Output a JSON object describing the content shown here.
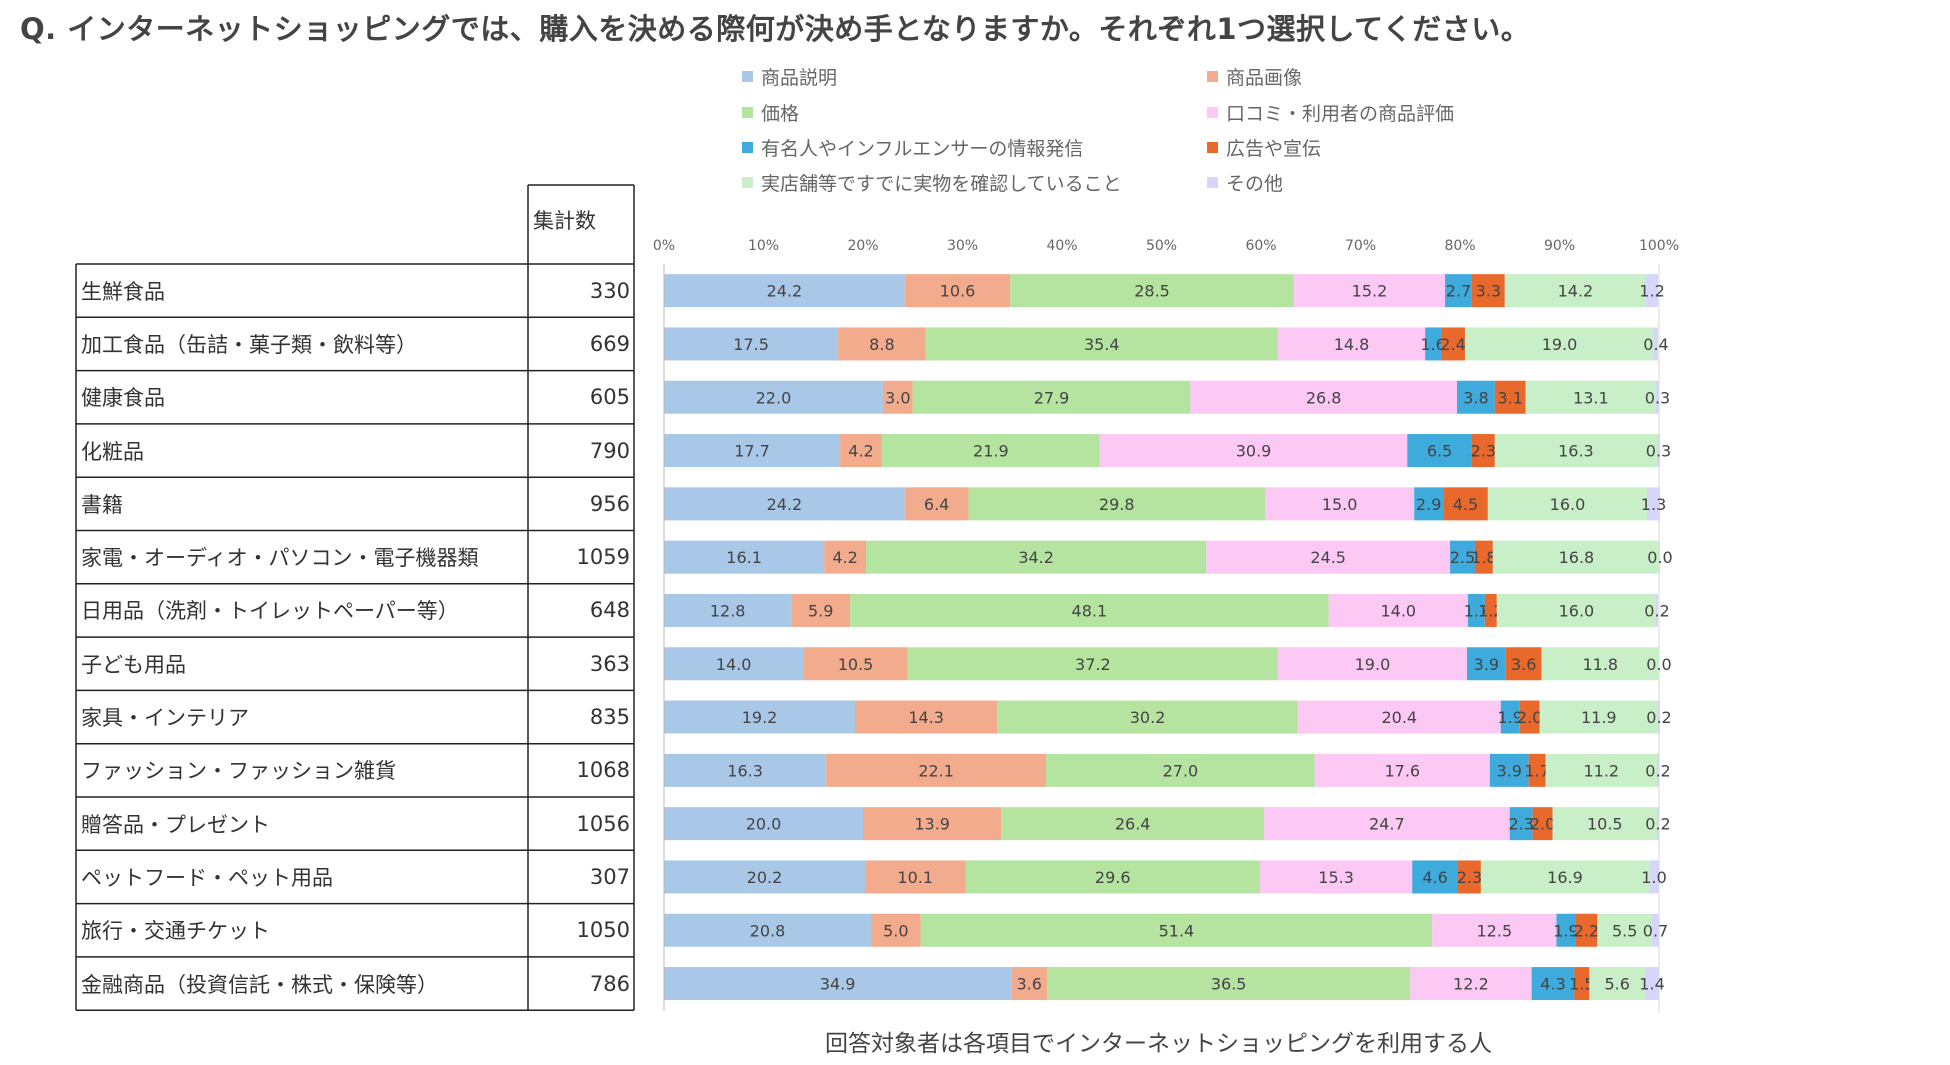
{
  "title": "Q. インターネットショッピングでは、購入を決める際何が決め手となりますか。それぞれ1つ選択してください。",
  "table": {
    "header": "集計数",
    "rows": [
      {
        "category": "生鮮食品",
        "count": "330"
      },
      {
        "category": "加工食品（缶詰・菓子類・飲料等）",
        "count": "669"
      },
      {
        "category": "健康食品",
        "count": "605"
      },
      {
        "category": "化粧品",
        "count": "790"
      },
      {
        "category": "書籍",
        "count": "956"
      },
      {
        "category": "家電・オーディオ・パソコン・電子機器類",
        "count": "1059"
      },
      {
        "category": "日用品（洗剤・トイレットペーパー等）",
        "count": "648"
      },
      {
        "category": "子ども用品",
        "count": "363"
      },
      {
        "category": "家具・インテリア",
        "count": "835"
      },
      {
        "category": "ファッション・ファッション雑貨",
        "count": "1068"
      },
      {
        "category": "贈答品・プレゼント",
        "count": "1056"
      },
      {
        "category": "ペットフード・ペット用品",
        "count": "307"
      },
      {
        "category": "旅行・交通チケット",
        "count": "1050"
      },
      {
        "category": "金融商品（投資信託・株式・保険等）",
        "count": "786"
      }
    ]
  },
  "footnote": "回答対象者は各項目でインターネットショッピングを利用する人",
  "chart_data": {
    "type": "bar",
    "orientation": "horizontal",
    "stacked": true,
    "percent": true,
    "xlim": [
      0,
      100
    ],
    "xticks": [
      "0%",
      "10%",
      "20%",
      "30%",
      "40%",
      "50%",
      "60%",
      "70%",
      "80%",
      "90%",
      "100%"
    ],
    "categories": [
      "生鮮食品",
      "加工食品（缶詰・菓子類・飲料等）",
      "健康食品",
      "化粧品",
      "書籍",
      "家電・オーディオ・パソコン・電子機器類",
      "日用品（洗剤・トイレットペーパー等）",
      "子ども用品",
      "家具・インテリア",
      "ファッション・ファッション雑貨",
      "贈答品・プレゼント",
      "ペットフード・ペット用品",
      "旅行・交通チケット",
      "金融商品（投資信託・株式・保険等）"
    ],
    "legend_position": "top",
    "series": [
      {
        "name": "商品説明",
        "color": "#a9c8e8",
        "values": [
          24.2,
          17.5,
          22.0,
          17.7,
          24.2,
          16.1,
          12.8,
          14.0,
          19.2,
          16.3,
          20.0,
          20.2,
          20.8,
          34.9
        ]
      },
      {
        "name": "商品画像",
        "color": "#f2ab8c",
        "values": [
          10.6,
          8.8,
          3.0,
          4.2,
          6.4,
          4.2,
          5.9,
          10.5,
          14.3,
          22.1,
          13.9,
          10.1,
          5.0,
          3.6
        ]
      },
      {
        "name": "価格",
        "color": "#b5e3a0",
        "values": [
          28.5,
          35.4,
          27.9,
          21.9,
          29.8,
          34.2,
          48.1,
          37.2,
          30.2,
          27.0,
          26.4,
          29.6,
          51.4,
          36.5
        ]
      },
      {
        "name": "口コミ・利用者の商品評価",
        "color": "#fcc8f4",
        "values": [
          15.2,
          14.8,
          26.8,
          30.9,
          15.0,
          24.5,
          14.0,
          19.0,
          20.4,
          17.6,
          24.7,
          15.3,
          12.5,
          12.2
        ]
      },
      {
        "name": "有名人やインフルエンサーの情報発信",
        "color": "#3faadc",
        "values": [
          2.7,
          1.6,
          3.8,
          6.5,
          2.9,
          2.5,
          1.7,
          3.9,
          1.9,
          3.9,
          2.3,
          4.6,
          1.9,
          4.3
        ]
      },
      {
        "name": "広告や宣伝",
        "color": "#e8692b",
        "values": [
          3.3,
          2.4,
          3.1,
          2.3,
          4.5,
          1.8,
          1.2,
          3.6,
          2.0,
          1.7,
          2.0,
          2.3,
          2.2,
          1.5
        ]
      },
      {
        "name": "実店舗等ですでに実物を確認していること",
        "color": "#c9efc9",
        "values": [
          14.2,
          19.0,
          13.1,
          16.3,
          16.0,
          16.8,
          16.0,
          11.8,
          11.9,
          11.2,
          10.5,
          16.9,
          5.5,
          5.6
        ]
      },
      {
        "name": "その他",
        "color": "#d6d6fa",
        "values": [
          1.2,
          0.4,
          0.3,
          0.3,
          1.3,
          0.0,
          0.2,
          0.0,
          0.2,
          0.2,
          0.2,
          1.0,
          0.7,
          1.4
        ]
      }
    ]
  }
}
